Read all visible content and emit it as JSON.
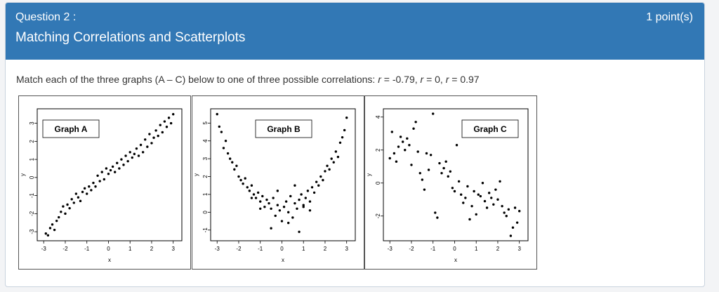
{
  "question": {
    "label": "Question 2 :",
    "points": "1 point(s)",
    "title": "Matching Correlations and Scatterplots"
  },
  "prompt": {
    "lead": "Match each of the three graphs (A – C) below to one of three possible correlations: ",
    "r1_value": " = -0.79, ",
    "r2_value": " = 0, ",
    "r3_value": " = 0.97",
    "r_symbol": "r"
  },
  "colors": {
    "header_bg": "#3278b5",
    "header_text": "#ffffff",
    "point": "#000000"
  },
  "chart_data": [
    {
      "type": "scatter",
      "title": "Graph A",
      "xlabel": "x",
      "ylabel": "y",
      "xlim": [
        -3.3,
        3.4
      ],
      "ylim": [
        -3.5,
        3.8
      ],
      "xticks": [
        "-3",
        "-2",
        "-1",
        "0",
        "1",
        "2",
        "3"
      ],
      "yticks": [
        "-3",
        "-2",
        "-1",
        "0",
        "1",
        "2",
        "3"
      ],
      "legend_placement": "top-left",
      "x": [
        -2.9,
        -2.8,
        -2.7,
        -2.6,
        -2.5,
        -2.4,
        -2.3,
        -2.2,
        -2.1,
        -2.0,
        -1.9,
        -1.8,
        -1.7,
        -1.6,
        -1.5,
        -1.4,
        -1.3,
        -1.2,
        -1.1,
        -1.0,
        -0.9,
        -0.8,
        -0.7,
        -0.6,
        -0.5,
        -0.4,
        -0.3,
        -0.2,
        -0.1,
        0.0,
        0.1,
        0.2,
        0.3,
        0.4,
        0.5,
        0.6,
        0.7,
        0.8,
        0.9,
        1.0,
        1.1,
        1.2,
        1.3,
        1.4,
        1.5,
        1.6,
        1.7,
        1.8,
        1.9,
        2.0,
        2.1,
        2.2,
        2.3,
        2.4,
        2.5,
        2.6,
        2.7,
        2.8,
        2.9,
        3.0
      ],
      "y": [
        -3.1,
        -3.2,
        -2.8,
        -2.6,
        -2.9,
        -2.4,
        -2.2,
        -1.9,
        -1.6,
        -2.0,
        -1.5,
        -1.7,
        -1.2,
        -1.4,
        -0.9,
        -1.1,
        -1.3,
        -0.8,
        -0.6,
        -0.9,
        -0.5,
        -0.7,
        -0.3,
        -0.5,
        0.1,
        -0.2,
        0.3,
        -0.1,
        0.5,
        0.2,
        0.4,
        0.6,
        0.3,
        0.8,
        0.5,
        1.0,
        0.7,
        1.2,
        0.9,
        1.4,
        1.1,
        1.3,
        1.6,
        1.2,
        1.8,
        1.4,
        2.1,
        1.7,
        2.4,
        1.9,
        2.2,
        2.6,
        2.3,
        2.9,
        2.5,
        3.1,
        2.8,
        3.3,
        3.0,
        3.5
      ]
    },
    {
      "type": "scatter",
      "title": "Graph B",
      "xlabel": "x",
      "ylabel": "y",
      "xlim": [
        -3.3,
        3.4
      ],
      "ylim": [
        -1.6,
        5.8
      ],
      "xticks": [
        "-3",
        "-2",
        "-1",
        "0",
        "1",
        "2",
        "3"
      ],
      "yticks": [
        "-1",
        "0",
        "1",
        "2",
        "3",
        "4",
        "5"
      ],
      "legend_placement": "top-center",
      "x": [
        -3.0,
        -2.9,
        -2.8,
        -2.7,
        -2.6,
        -2.5,
        -2.4,
        -2.3,
        -2.2,
        -2.1,
        -2.0,
        -1.9,
        -1.8,
        -1.7,
        -1.6,
        -1.5,
        -1.4,
        -1.3,
        -1.2,
        -1.1,
        -1.0,
        -0.9,
        -0.8,
        -0.7,
        -0.6,
        -0.5,
        -0.4,
        -0.3,
        -0.2,
        -0.1,
        0.0,
        0.1,
        0.2,
        0.3,
        0.4,
        0.5,
        0.6,
        0.7,
        0.8,
        0.9,
        1.0,
        1.1,
        1.2,
        1.3,
        1.4,
        1.5,
        1.6,
        1.7,
        1.8,
        1.9,
        2.0,
        2.1,
        2.2,
        2.3,
        2.4,
        2.5,
        2.6,
        2.7,
        2.8,
        2.9,
        3.0,
        -1.0,
        -0.5,
        0.3,
        0.8,
        -1.4,
        1.3,
        -0.2,
        0.6,
        1.0
      ],
      "y": [
        5.5,
        4.8,
        4.5,
        3.6,
        4.0,
        3.3,
        3.0,
        2.8,
        2.4,
        2.6,
        2.0,
        1.8,
        1.6,
        1.9,
        1.4,
        1.2,
        1.5,
        1.0,
        0.8,
        1.1,
        0.6,
        0.9,
        0.3,
        0.7,
        0.5,
        0.2,
        0.8,
        -0.2,
        0.4,
        0.1,
        -0.5,
        0.3,
        0.6,
        0.0,
        0.9,
        -0.3,
        0.5,
        0.2,
        0.7,
        1.0,
        0.4,
        0.8,
        1.2,
        0.6,
        1.4,
        1.1,
        1.7,
        1.5,
        2.0,
        1.8,
        2.3,
        2.6,
        2.4,
        3.0,
        2.8,
        3.4,
        3.1,
        3.9,
        4.2,
        4.6,
        5.3,
        0.2,
        -0.9,
        -0.6,
        -1.1,
        0.8,
        0.1,
        1.2,
        1.5,
        0.3
      ]
    },
    {
      "type": "scatter",
      "title": "Graph C",
      "xlabel": "x",
      "ylabel": "y",
      "xlim": [
        -3.3,
        3.4
      ],
      "ylim": [
        -3.5,
        4.5
      ],
      "xticks": [
        "-3",
        "-2",
        "-1",
        "0",
        "1",
        "2",
        "3"
      ],
      "yticks": [
        "-2",
        "0",
        "2",
        "4"
      ],
      "legend_placement": "top-right",
      "x": [
        -3.0,
        -2.9,
        -2.8,
        -2.7,
        -2.6,
        -2.5,
        -2.4,
        -2.3,
        -2.2,
        -2.1,
        -2.0,
        -1.9,
        -1.8,
        -1.7,
        -1.6,
        -1.5,
        -1.4,
        -1.3,
        -1.2,
        -1.1,
        -1.0,
        -0.9,
        -0.8,
        -0.7,
        -0.6,
        -0.5,
        -0.4,
        -0.3,
        -0.2,
        -0.1,
        0.0,
        0.1,
        0.2,
        0.3,
        0.4,
        0.5,
        0.6,
        0.7,
        0.8,
        0.9,
        1.0,
        1.1,
        1.2,
        1.3,
        1.4,
        1.5,
        1.6,
        1.7,
        1.8,
        1.9,
        2.0,
        2.1,
        2.2,
        2.3,
        2.4,
        2.5,
        2.6,
        2.7,
        2.8,
        2.9,
        3.0
      ],
      "y": [
        1.5,
        3.1,
        1.8,
        1.3,
        2.2,
        2.8,
        2.5,
        2.0,
        2.7,
        2.3,
        1.1,
        3.3,
        3.7,
        1.9,
        0.6,
        0.2,
        -0.4,
        1.8,
        0.8,
        1.7,
        4.2,
        -1.8,
        -2.1,
        1.2,
        0.6,
        0.9,
        1.3,
        0.4,
        0.7,
        -0.3,
        -0.5,
        2.3,
        0.1,
        -0.7,
        -1.2,
        -0.9,
        -0.2,
        -2.2,
        -1.4,
        -0.5,
        -1.9,
        -0.7,
        -0.8,
        0.0,
        -1.1,
        -1.5,
        -0.6,
        -0.9,
        -1.3,
        -0.4,
        -1.0,
        0.1,
        -1.4,
        -1.8,
        -2.0,
        -1.6,
        -3.2,
        -2.7,
        -1.5,
        -2.4,
        -1.7
      ]
    }
  ]
}
